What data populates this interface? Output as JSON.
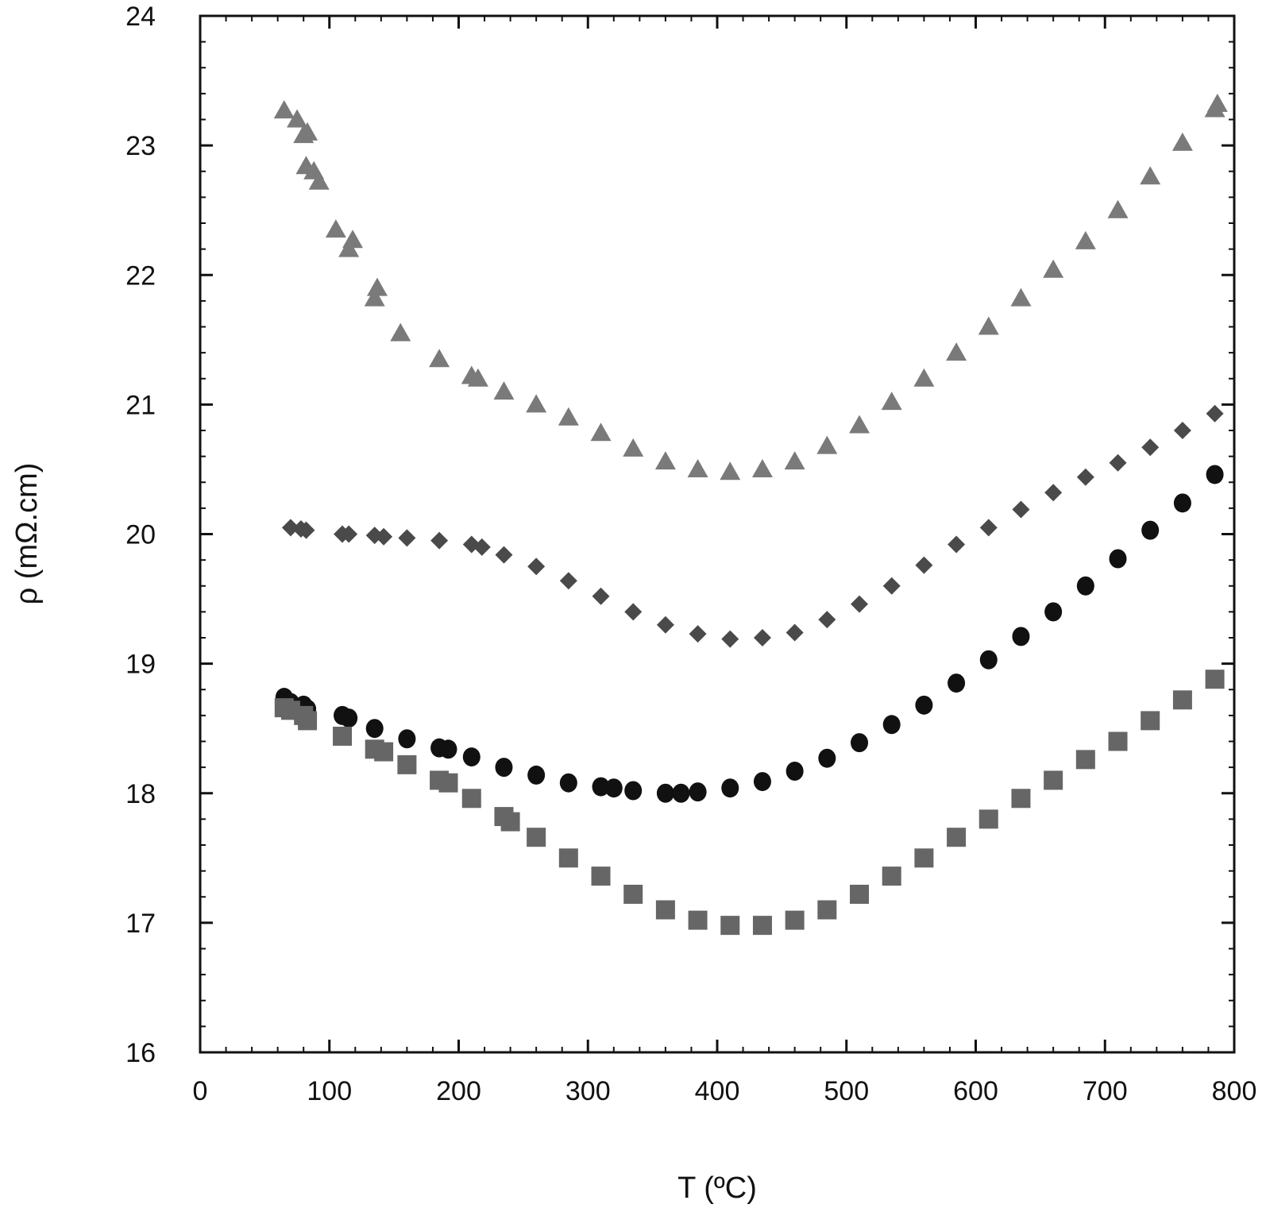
{
  "chart_data": {
    "type": "scatter",
    "title": "",
    "xlabel": "T (ºC)",
    "ylabel": "ρ (mΩ.cm)",
    "xlim": [
      0,
      800
    ],
    "ylim": [
      16,
      24
    ],
    "xticks": [
      "0",
      "100",
      "200",
      "300",
      "400",
      "500",
      "600",
      "700",
      "800"
    ],
    "yticks": [
      "16",
      "17",
      "18",
      "19",
      "20",
      "21",
      "22",
      "23",
      "24"
    ],
    "grid": false,
    "legend": "none",
    "series": [
      {
        "marker": "triangle",
        "color": "#7a7a7a",
        "x": [
          65,
          75,
          80,
          83,
          82,
          88,
          92,
          105,
          115,
          118,
          135,
          137,
          155,
          185,
          210,
          215,
          235,
          260,
          285,
          310,
          335,
          360,
          385,
          410,
          435,
          460,
          485,
          510,
          535,
          560,
          585,
          610,
          635,
          660,
          685,
          710,
          735,
          760,
          785,
          787
        ],
        "y": [
          23.27,
          23.2,
          23.08,
          23.1,
          22.84,
          22.8,
          22.72,
          22.35,
          22.2,
          22.27,
          21.82,
          21.9,
          21.55,
          21.35,
          21.22,
          21.2,
          21.1,
          21.0,
          20.9,
          20.78,
          20.66,
          20.56,
          20.5,
          20.48,
          20.5,
          20.56,
          20.68,
          20.84,
          21.02,
          21.2,
          21.4,
          21.6,
          21.82,
          22.04,
          22.26,
          22.5,
          22.76,
          23.02,
          23.28,
          23.32
        ]
      },
      {
        "marker": "diamond",
        "color": "#4a4a4a",
        "x": [
          70,
          78,
          82,
          110,
          115,
          135,
          142,
          160,
          185,
          210,
          218,
          235,
          260,
          285,
          310,
          335,
          360,
          385,
          410,
          435,
          460,
          485,
          510,
          535,
          560,
          585,
          610,
          635,
          660,
          685,
          710,
          735,
          760,
          785
        ],
        "y": [
          20.05,
          20.04,
          20.03,
          20.0,
          20.0,
          19.99,
          19.98,
          19.97,
          19.95,
          19.92,
          19.9,
          19.84,
          19.75,
          19.64,
          19.52,
          19.4,
          19.3,
          19.23,
          19.19,
          19.2,
          19.24,
          19.34,
          19.46,
          19.6,
          19.76,
          19.92,
          20.05,
          20.19,
          20.32,
          20.44,
          20.55,
          20.67,
          20.8,
          20.93
        ]
      },
      {
        "marker": "circle",
        "color": "#111111",
        "x": [
          65,
          70,
          80,
          83,
          110,
          115,
          135,
          160,
          185,
          192,
          210,
          235,
          260,
          285,
          310,
          320,
          335,
          360,
          372,
          385,
          410,
          435,
          460,
          485,
          510,
          535,
          560,
          585,
          610,
          635,
          660,
          685,
          710,
          735,
          760,
          785
        ],
        "y": [
          18.74,
          18.7,
          18.68,
          18.65,
          18.6,
          18.58,
          18.5,
          18.42,
          18.35,
          18.34,
          18.28,
          18.2,
          18.14,
          18.08,
          18.05,
          18.04,
          18.02,
          18.0,
          18.0,
          18.01,
          18.04,
          18.09,
          18.17,
          18.27,
          18.39,
          18.53,
          18.68,
          18.85,
          19.03,
          19.21,
          19.4,
          19.6,
          19.81,
          20.03,
          20.24,
          20.46
        ]
      },
      {
        "marker": "square",
        "color": "#666666",
        "x": [
          65,
          70,
          80,
          83,
          110,
          135,
          142,
          160,
          185,
          192,
          210,
          235,
          240,
          260,
          285,
          310,
          335,
          360,
          385,
          410,
          435,
          460,
          485,
          510,
          535,
          560,
          585,
          610,
          635,
          660,
          685,
          710,
          735,
          760,
          785
        ],
        "y": [
          18.66,
          18.64,
          18.6,
          18.56,
          18.44,
          18.34,
          18.32,
          18.22,
          18.1,
          18.08,
          17.96,
          17.82,
          17.78,
          17.66,
          17.5,
          17.36,
          17.22,
          17.1,
          17.02,
          16.98,
          16.98,
          17.02,
          17.1,
          17.22,
          17.36,
          17.5,
          17.66,
          17.8,
          17.96,
          18.1,
          18.26,
          18.4,
          18.56,
          18.72,
          18.88
        ]
      }
    ]
  }
}
